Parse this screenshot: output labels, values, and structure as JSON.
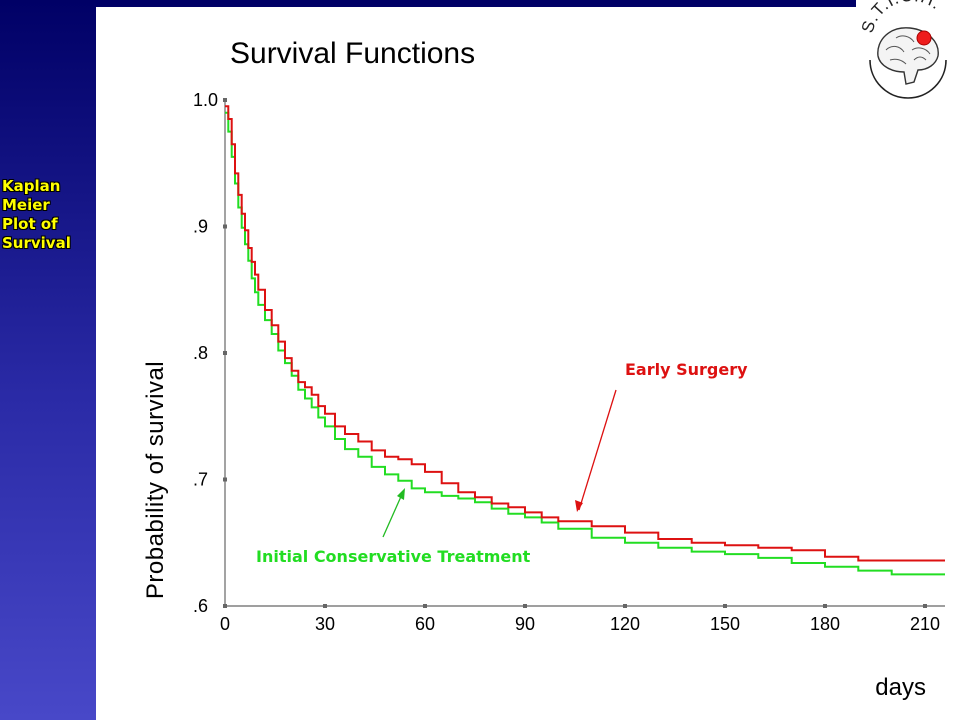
{
  "sidebar": {
    "label_lines": [
      "Kaplan",
      "Meier",
      "Plot of",
      "Survival"
    ]
  },
  "logo": {
    "text": "S.T.I.C.H."
  },
  "colors": {
    "early_surgery": "#dd1111",
    "conservative": "#22dd22",
    "title_text": "#000000",
    "sidebar_text": "#ffff00"
  },
  "chart_data": {
    "type": "line",
    "step": true,
    "title": "Survival Functions",
    "xlabel": "days",
    "ylabel": "Probability of survival",
    "xlim": [
      0,
      216
    ],
    "ylim": [
      0.6,
      1.0
    ],
    "x_ticks": [
      0,
      30,
      60,
      90,
      120,
      150,
      180,
      210
    ],
    "y_ticks": [
      {
        "value": 0.6,
        "label": ".6"
      },
      {
        "value": 0.7,
        "label": ".7"
      },
      {
        "value": 0.8,
        "label": ".8"
      },
      {
        "value": 0.9,
        "label": ".9"
      },
      {
        "value": 1.0,
        "label": "1.0"
      }
    ],
    "grid": false,
    "annotations": [
      {
        "text": "Early Surgery",
        "series": "Early Surgery",
        "color": "#dd1111",
        "arrow_to": [
          106,
          0.667
        ]
      },
      {
        "text": "Initial Conservative Treatment",
        "series": "Initial Conservative Treatment",
        "color": "#22dd22",
        "arrow_to": [
          54,
          0.694
        ]
      }
    ],
    "series": [
      {
        "name": "Early Surgery",
        "color": "#dd1111",
        "x": [
          0,
          1,
          2,
          3,
          4,
          5,
          6,
          7,
          8,
          9,
          10,
          12,
          14,
          16,
          18,
          20,
          22,
          24,
          26,
          28,
          30,
          33,
          36,
          40,
          44,
          48,
          52,
          56,
          60,
          65,
          70,
          75,
          80,
          85,
          90,
          95,
          100,
          110,
          120,
          130,
          140,
          150,
          160,
          170,
          180,
          190,
          200,
          216
        ],
        "y": [
          0.995,
          0.985,
          0.965,
          0.942,
          0.925,
          0.91,
          0.897,
          0.883,
          0.872,
          0.862,
          0.85,
          0.834,
          0.822,
          0.809,
          0.796,
          0.786,
          0.777,
          0.773,
          0.767,
          0.758,
          0.752,
          0.742,
          0.736,
          0.73,
          0.723,
          0.718,
          0.716,
          0.712,
          0.706,
          0.697,
          0.69,
          0.686,
          0.681,
          0.678,
          0.674,
          0.67,
          0.667,
          0.663,
          0.658,
          0.653,
          0.65,
          0.648,
          0.646,
          0.644,
          0.639,
          0.636,
          0.636,
          0.636
        ]
      },
      {
        "name": "Initial Conservative Treatment",
        "color": "#22dd22",
        "x": [
          0,
          1,
          2,
          3,
          4,
          5,
          6,
          7,
          8,
          9,
          10,
          12,
          14,
          16,
          18,
          20,
          22,
          24,
          26,
          28,
          30,
          33,
          36,
          40,
          44,
          48,
          52,
          56,
          60,
          65,
          70,
          75,
          80,
          85,
          90,
          95,
          100,
          110,
          120,
          130,
          140,
          150,
          160,
          170,
          180,
          190,
          200,
          216
        ],
        "y": [
          0.99,
          0.975,
          0.955,
          0.934,
          0.915,
          0.899,
          0.886,
          0.873,
          0.859,
          0.848,
          0.838,
          0.826,
          0.815,
          0.802,
          0.792,
          0.782,
          0.771,
          0.764,
          0.757,
          0.749,
          0.742,
          0.732,
          0.724,
          0.718,
          0.71,
          0.704,
          0.699,
          0.693,
          0.69,
          0.687,
          0.685,
          0.682,
          0.677,
          0.673,
          0.67,
          0.666,
          0.661,
          0.654,
          0.65,
          0.646,
          0.643,
          0.641,
          0.638,
          0.634,
          0.631,
          0.628,
          0.625,
          0.625
        ]
      }
    ]
  }
}
